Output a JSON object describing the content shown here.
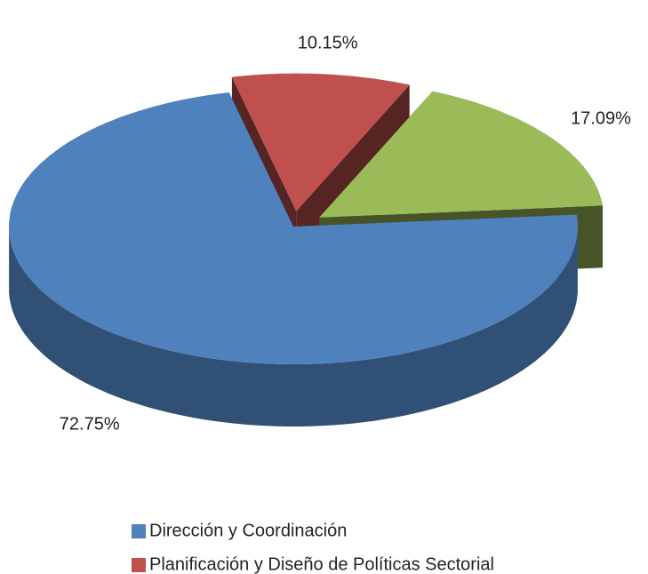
{
  "chart_data": {
    "type": "pie",
    "categories": [
      "Dirección y Coordinación",
      "Planificación y Diseño de Políticas Sectorial",
      null
    ],
    "values": [
      72.75,
      10.15,
      17.09
    ],
    "value_labels": [
      "72.75%",
      "10.15%",
      "17.09%"
    ],
    "colors": [
      "#4f81bd",
      "#c0504d",
      "#9bbb59"
    ],
    "legend": "bottom"
  }
}
